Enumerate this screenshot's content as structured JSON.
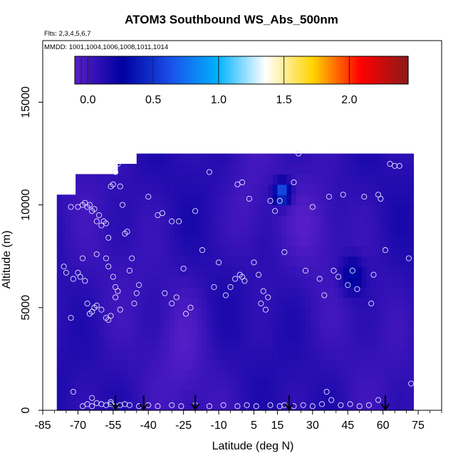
{
  "chart_data": {
    "type": "heatmap",
    "title": "ATOM3 Southbound WS_Abs_500nm",
    "flights_note": "Flts: 2,3,4,5,6,7",
    "dates_note": "MMDD: 1001,1004,1006,1008,1011,1014",
    "xlabel": "Latitude (deg N)",
    "ylabel": "Altitude (m)",
    "xlim": [
      -85,
      85
    ],
    "ylim": [
      0,
      18000
    ],
    "x_ticks": [
      -85,
      -70,
      -55,
      -40,
      -25,
      -10,
      5,
      15,
      30,
      45,
      60,
      75
    ],
    "y_ticks": [
      0,
      5000,
      10000,
      15000
    ],
    "colorbar": {
      "range": [
        -0.1,
        2.45
      ],
      "ticks": [
        "0.0",
        "0.5",
        "1.0",
        "1.5",
        "2.0"
      ],
      "tick_values": [
        0.0,
        0.5,
        1.0,
        1.5,
        2.0
      ],
      "colors": [
        "#5a1fc9",
        "#00009e",
        "#1a4fe8",
        "#00b2ff",
        "#ffffff",
        "#ffd400",
        "#ff0000",
        "#8b1a1a"
      ]
    },
    "field": {
      "lat_range": [
        -79,
        72
      ],
      "alt_range": [
        0,
        12500
      ],
      "description_values": "mostly 0.0-0.2 with local maxima near 0.7 at ~17N/10.5km and ~0.35 at ~47N/6.5km"
    },
    "profile_markers_lat": [
      -54,
      -42,
      -20,
      20,
      61
    ],
    "sample_points": [
      [
        -76,
        7000
      ],
      [
        -75,
        6700
      ],
      [
        -73,
        9900
      ],
      [
        -73,
        4500
      ],
      [
        -72,
        900
      ],
      [
        -70,
        9900
      ],
      [
        -68,
        10000
      ],
      [
        -67,
        10100
      ],
      [
        -66,
        9900
      ],
      [
        -65,
        10000
      ],
      [
        -64,
        9700
      ],
      [
        -63,
        9800
      ],
      [
        -62,
        9200
      ],
      [
        -61,
        9500
      ],
      [
        -60,
        9000
      ],
      [
        -59,
        9200
      ],
      [
        -58,
        9100
      ],
      [
        -57,
        8400
      ],
      [
        -56,
        10900
      ],
      [
        -55,
        11000
      ],
      [
        -54,
        11600
      ],
      [
        -53,
        12000
      ],
      [
        -52,
        10900
      ],
      [
        -51,
        10000
      ],
      [
        -50,
        8600
      ],
      [
        -49,
        8700
      ],
      [
        -47,
        7400
      ],
      [
        -48,
        6800
      ],
      [
        -46,
        5200
      ],
      [
        -45,
        5700
      ],
      [
        -44,
        6100
      ],
      [
        -58,
        7400
      ],
      [
        -57,
        7000
      ],
      [
        -55,
        6500
      ],
      [
        -54,
        6000
      ],
      [
        -53,
        5800
      ],
      [
        -52,
        4900
      ],
      [
        -54,
        5500
      ],
      [
        -56,
        4600
      ],
      [
        -57,
        4400
      ],
      [
        -58,
        4500
      ],
      [
        -60,
        4900
      ],
      [
        -62,
        5100
      ],
      [
        -63,
        5000
      ],
      [
        -64,
        4800
      ],
      [
        -65,
        4700
      ],
      [
        -66,
        5200
      ],
      [
        -67,
        6300
      ],
      [
        -69,
        6500
      ],
      [
        -70,
        6700
      ],
      [
        -72,
        6400
      ],
      [
        -68,
        7400
      ],
      [
        -62,
        7600
      ],
      [
        -40,
        10400
      ],
      [
        -36,
        9500
      ],
      [
        -34,
        9600
      ],
      [
        -30,
        9200
      ],
      [
        -27,
        9200
      ],
      [
        -25,
        6900
      ],
      [
        -33,
        5700
      ],
      [
        -28,
        5500
      ],
      [
        -30,
        5200
      ],
      [
        -24,
        4700
      ],
      [
        -22,
        5000
      ],
      [
        -20,
        9700
      ],
      [
        -17,
        7800
      ],
      [
        -14,
        11600
      ],
      [
        -12,
        6000
      ],
      [
        -10,
        7200
      ],
      [
        -7,
        5600
      ],
      [
        -5,
        6000
      ],
      [
        -3,
        6400
      ],
      [
        -1,
        6600
      ],
      [
        0,
        6500
      ],
      [
        1,
        6300
      ],
      [
        3,
        10300
      ],
      [
        -2,
        11000
      ],
      [
        0,
        11100
      ],
      [
        5,
        7200
      ],
      [
        7,
        6600
      ],
      [
        8,
        5200
      ],
      [
        9,
        5800
      ],
      [
        10,
        4900
      ],
      [
        11,
        5500
      ],
      [
        12,
        10200
      ],
      [
        14,
        9700
      ],
      [
        16,
        10200
      ],
      [
        18,
        7700
      ],
      [
        22,
        11100
      ],
      [
        24,
        12500
      ],
      [
        27,
        6800
      ],
      [
        30,
        9900
      ],
      [
        33,
        6400
      ],
      [
        35,
        5600
      ],
      [
        37,
        10400
      ],
      [
        39,
        6800
      ],
      [
        41,
        6500
      ],
      [
        43,
        10500
      ],
      [
        45,
        6100
      ],
      [
        47,
        6800
      ],
      [
        49,
        5900
      ],
      [
        52,
        10400
      ],
      [
        55,
        5200
      ],
      [
        56,
        6600
      ],
      [
        58,
        10500
      ],
      [
        59,
        10300
      ],
      [
        61,
        7800
      ],
      [
        63,
        12000
      ],
      [
        65,
        11900
      ],
      [
        67,
        11900
      ],
      [
        71,
        7400
      ],
      [
        72,
        1300
      ],
      [
        -68,
        200
      ],
      [
        -66,
        300
      ],
      [
        -64,
        200
      ],
      [
        -62,
        350
      ],
      [
        -60,
        300
      ],
      [
        -58,
        250
      ],
      [
        -56,
        300
      ],
      [
        -54,
        200
      ],
      [
        -52,
        250
      ],
      [
        -50,
        300
      ],
      [
        -48,
        250
      ],
      [
        -44,
        200
      ],
      [
        -40,
        250
      ],
      [
        -36,
        200
      ],
      [
        -30,
        250
      ],
      [
        -26,
        200
      ],
      [
        -20,
        250
      ],
      [
        -14,
        200
      ],
      [
        -8,
        250
      ],
      [
        -2,
        200
      ],
      [
        2,
        250
      ],
      [
        6,
        200
      ],
      [
        12,
        250
      ],
      [
        16,
        200
      ],
      [
        18,
        250
      ],
      [
        22,
        200
      ],
      [
        26,
        250
      ],
      [
        30,
        200
      ],
      [
        34,
        300
      ],
      [
        36,
        900
      ],
      [
        38,
        500
      ],
      [
        42,
        250
      ],
      [
        46,
        300
      ],
      [
        50,
        200
      ],
      [
        54,
        250
      ],
      [
        58,
        500
      ],
      [
        -64,
        600
      ],
      [
        -56,
        400
      ]
    ]
  }
}
